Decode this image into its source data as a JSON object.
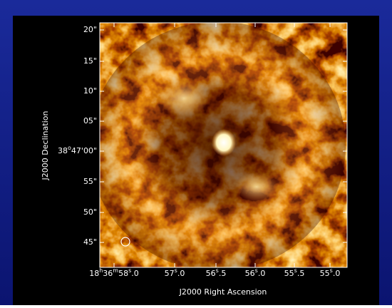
{
  "image": {
    "y_axis_title": "J2000 Declination",
    "x_axis_title": "J2000 Right Ascension",
    "y_tick_labels": [
      [
        {
          "text": "20\"",
          "sup": false
        }
      ],
      [
        {
          "text": "15\"",
          "sup": false
        }
      ],
      [
        {
          "text": "10\"",
          "sup": false
        }
      ],
      [
        {
          "text": "05\"",
          "sup": false
        }
      ],
      [
        {
          "text": "38",
          "sup": false
        },
        {
          "text": "o",
          "sup": true
        },
        {
          "text": "47'00\"",
          "sup": false
        }
      ],
      [
        {
          "text": "55\"",
          "sup": false
        }
      ],
      [
        {
          "text": "50\"",
          "sup": false
        }
      ],
      [
        {
          "text": "45\"",
          "sup": false
        }
      ]
    ],
    "x_tick_labels": [
      [
        {
          "text": "18",
          "sup": false
        },
        {
          "text": "h",
          "sup": true
        },
        {
          "text": "36",
          "sup": false
        },
        {
          "text": "m",
          "sup": true
        },
        {
          "text": "58",
          "sup": false
        },
        {
          "text": "s",
          "sup": true
        },
        {
          "text": ".0",
          "sup": false
        }
      ],
      [
        {
          "text": "57",
          "sup": false
        },
        {
          "text": "s",
          "sup": true
        },
        {
          "text": ".0",
          "sup": false
        }
      ],
      [
        {
          "text": "56",
          "sup": false
        },
        {
          "text": "s",
          "sup": true
        },
        {
          "text": ".5",
          "sup": false
        }
      ],
      [
        {
          "text": "56",
          "sup": false
        },
        {
          "text": "s",
          "sup": true
        },
        {
          "text": ".0",
          "sup": false
        }
      ],
      [
        {
          "text": "55",
          "sup": false
        },
        {
          "text": "s",
          "sup": true
        },
        {
          "text": ".5",
          "sup": false
        }
      ],
      [
        {
          "text": "55",
          "sup": false
        },
        {
          "text": "s",
          "sup": true
        },
        {
          "text": ".0",
          "sup": false
        }
      ]
    ]
  }
}
